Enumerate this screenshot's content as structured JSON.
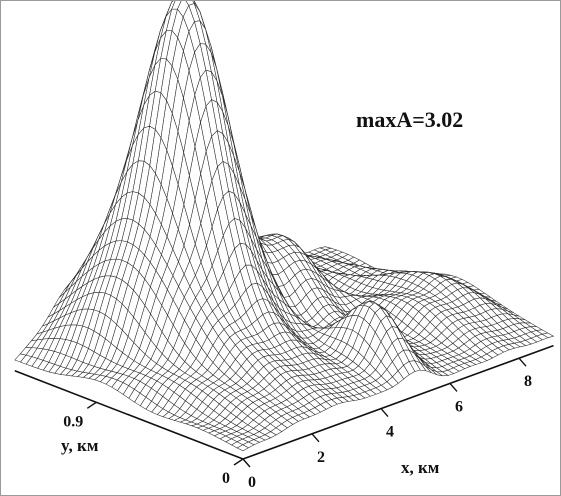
{
  "chart_data": {
    "type": "surface",
    "annotation": "maxA=3.02",
    "max_value": 3.02,
    "x_axis": {
      "label": "x, км",
      "ticks": [
        {
          "value": 0,
          "label": "0"
        },
        {
          "value": 2,
          "label": "2"
        },
        {
          "value": 4,
          "label": "4"
        },
        {
          "value": 6,
          "label": "6"
        },
        {
          "value": 8,
          "label": "8"
        }
      ],
      "range": [
        0,
        9
      ]
    },
    "y_axis": {
      "label": "y, км",
      "ticks": [
        {
          "value": 0,
          "label": "0"
        },
        {
          "value": 0.9,
          "label": "0.9"
        }
      ],
      "range": [
        0,
        1.4
      ]
    },
    "z_range": [
      0,
      3.02
    ],
    "surface_peaks": [
      {
        "x": 3.0,
        "y": 1.0,
        "z": 3.02
      },
      {
        "x": 4.5,
        "y": 1.15,
        "z": 1.05
      },
      {
        "x": 5.6,
        "y": 0.9,
        "z": 0.6
      },
      {
        "x": 1.5,
        "y": 1.1,
        "z": 0.75
      },
      {
        "x": 5.0,
        "y": 0.25,
        "z": 0.5
      },
      {
        "x": 7.8,
        "y": 0.5,
        "z": 0.32
      }
    ],
    "grid": true,
    "legend": "none"
  }
}
